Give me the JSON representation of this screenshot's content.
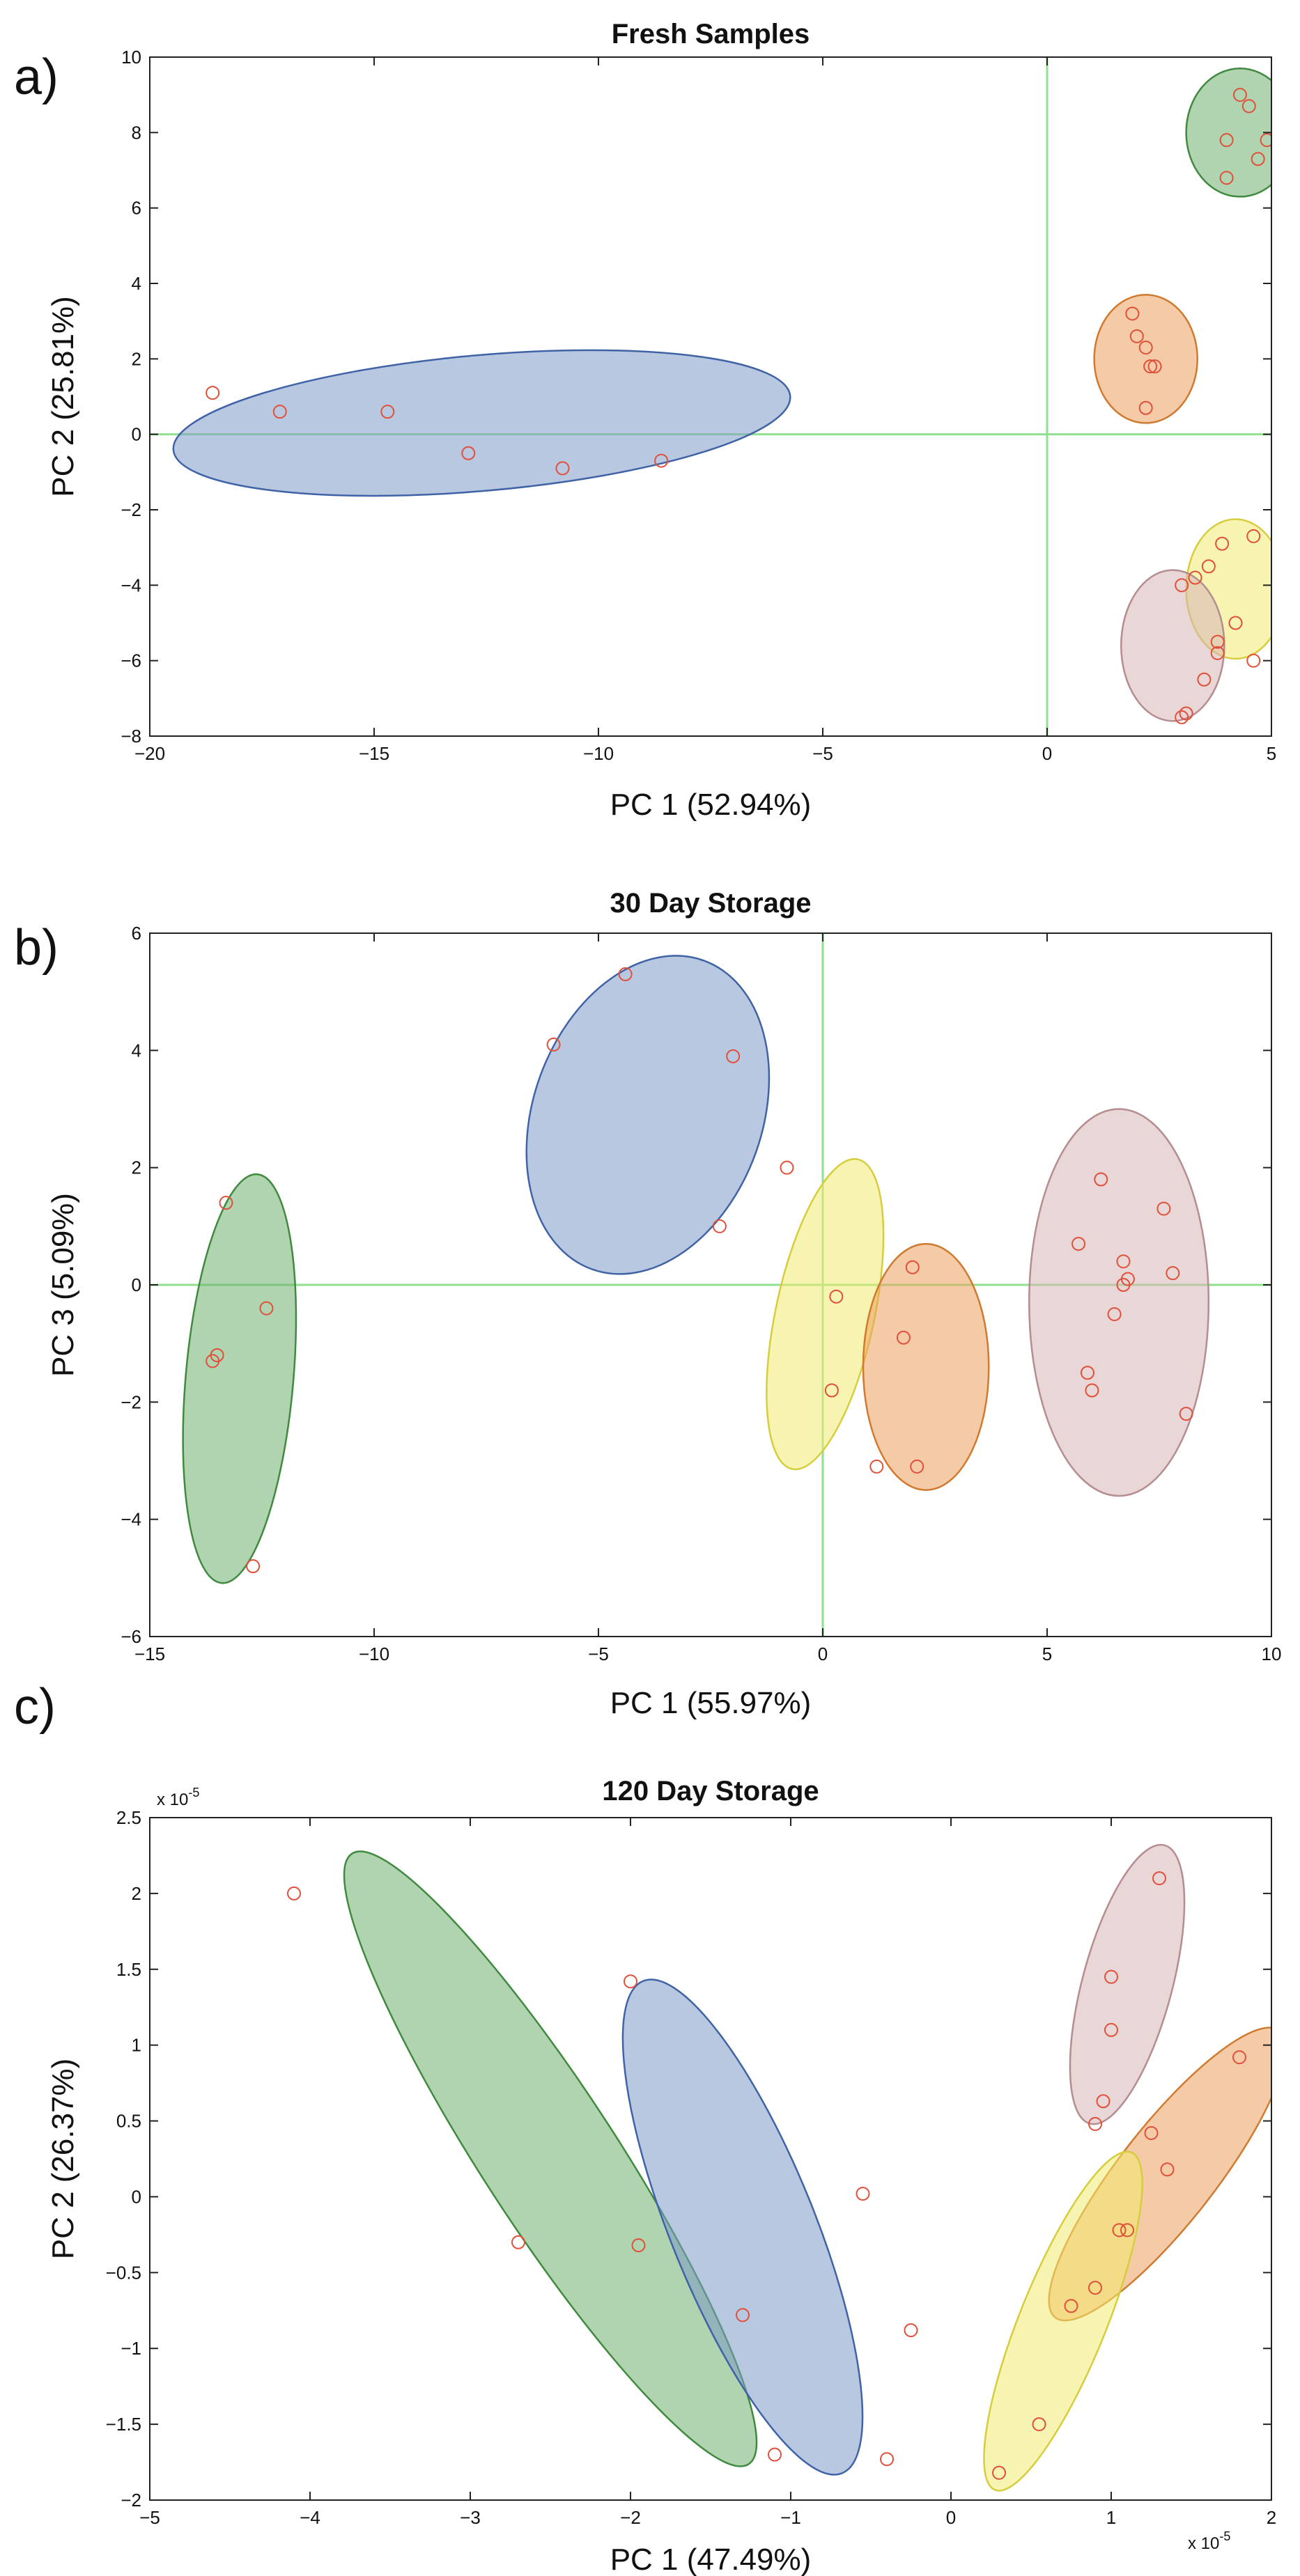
{
  "chart_data": [
    {
      "type": "scatter",
      "panel_label": "a)",
      "title": "Fresh Samples",
      "xlabel": "PC 1 (52.94%)",
      "ylabel": "PC 2 (25.81%)",
      "xlim": [
        -20,
        5
      ],
      "ylim": [
        -8,
        10
      ],
      "xticks": [
        -20,
        -15,
        -10,
        -5,
        0,
        5
      ],
      "yticks": [
        -8,
        -6,
        -4,
        -2,
        0,
        2,
        4,
        6,
        8,
        10
      ],
      "tick_multiplier": "",
      "origin_lines": true,
      "marker_color": "#e0503a",
      "groups": [
        {
          "color": "#7d9bc6",
          "stroke": "#3f63a6",
          "ellipse": {
            "cx": -12.6,
            "cy": 0.3,
            "rx": 6.9,
            "ry": 1.8,
            "angle_deg": -5
          },
          "points": [
            [
              -18.6,
              1.1
            ],
            [
              -17.1,
              0.6
            ],
            [
              -14.7,
              0.6
            ],
            [
              -12.9,
              -0.5
            ],
            [
              -10.8,
              -0.9
            ],
            [
              -8.6,
              -0.7
            ]
          ]
        },
        {
          "color": "#6fae6f",
          "stroke": "#3f8a3f",
          "ellipse": {
            "cx": 4.3,
            "cy": 8.0,
            "rx": 1.2,
            "ry": 1.7,
            "angle_deg": 0
          },
          "points": [
            [
              4.3,
              9.0
            ],
            [
              4.5,
              8.7
            ],
            [
              4.0,
              7.8
            ],
            [
              4.9,
              7.8
            ],
            [
              4.7,
              7.3
            ],
            [
              4.0,
              6.8
            ]
          ]
        },
        {
          "color": "#eca15e",
          "stroke": "#d07a30",
          "ellipse": {
            "cx": 2.2,
            "cy": 2.0,
            "rx": 1.15,
            "ry": 1.7,
            "angle_deg": 0
          },
          "points": [
            [
              1.9,
              3.2
            ],
            [
              2.0,
              2.6
            ],
            [
              2.2,
              2.3
            ],
            [
              2.3,
              1.8
            ],
            [
              2.4,
              1.8
            ],
            [
              2.2,
              0.7
            ]
          ]
        },
        {
          "color": "#f0ea70",
          "stroke": "#d6cd3e",
          "ellipse": {
            "cx": 4.2,
            "cy": -4.1,
            "rx": 1.1,
            "ry": 1.85,
            "angle_deg": 0
          },
          "points": [
            [
              3.9,
              -2.9
            ],
            [
              4.6,
              -2.7
            ],
            [
              3.6,
              -3.5
            ],
            [
              3.3,
              -3.8
            ],
            [
              3.0,
              -4.0
            ],
            [
              4.2,
              -5.0
            ]
          ]
        },
        {
          "color": "#d7b4b6",
          "stroke": "#b58c8f",
          "ellipse": {
            "cx": 2.8,
            "cy": -5.6,
            "rx": 1.15,
            "ry": 2.0,
            "angle_deg": 0
          },
          "points": [
            [
              3.8,
              -5.5
            ],
            [
              3.8,
              -5.8
            ],
            [
              3.5,
              -6.5
            ],
            [
              4.6,
              -6.0
            ],
            [
              3.1,
              -7.4
            ],
            [
              3.0,
              -7.5
            ]
          ]
        }
      ]
    },
    {
      "type": "scatter",
      "panel_label": "b)",
      "title": "30 Day Storage",
      "xlabel": "PC 1 (55.97%)",
      "ylabel": "PC 3 (5.09%)",
      "xlim": [
        -15,
        10
      ],
      "ylim": [
        -6,
        6
      ],
      "xticks": [
        -15,
        -10,
        -5,
        0,
        5,
        10
      ],
      "yticks": [
        -6,
        -4,
        -2,
        0,
        2,
        4,
        6
      ],
      "tick_multiplier": "",
      "origin_lines": true,
      "marker_color": "#e0503a",
      "groups": [
        {
          "color": "#6fae6f",
          "stroke": "#3f8a3f",
          "ellipse": {
            "cx": -13.0,
            "cy": -1.6,
            "rx": 1.2,
            "ry": 3.5,
            "angle_deg": 5
          },
          "points": [
            [
              -13.3,
              1.4
            ],
            [
              -12.4,
              -0.4
            ],
            [
              -13.5,
              -1.2
            ],
            [
              -13.6,
              -1.3
            ],
            [
              -12.7,
              -4.8
            ]
          ]
        },
        {
          "color": "#7d9bc6",
          "stroke": "#3f63a6",
          "ellipse": {
            "cx": -3.9,
            "cy": 2.9,
            "rx": 2.55,
            "ry": 2.8,
            "angle_deg": 20
          },
          "points": [
            [
              -4.4,
              5.3
            ],
            [
              -6.0,
              4.1
            ],
            [
              -2.0,
              3.9
            ],
            [
              -2.3,
              1.0
            ]
          ]
        },
        {
          "color": "#f0ea70",
          "stroke": "#d6cd3e",
          "ellipse": {
            "cx": 0.05,
            "cy": -0.5,
            "rx": 1.1,
            "ry": 2.7,
            "angle_deg": 12
          },
          "points": [
            [
              -0.8,
              2.0
            ],
            [
              0.3,
              -0.2
            ],
            [
              0.2,
              -1.8
            ],
            [
              1.2,
              -3.1
            ]
          ]
        },
        {
          "color": "#eca15e",
          "stroke": "#d07a30",
          "ellipse": {
            "cx": 2.3,
            "cy": -1.4,
            "rx": 1.4,
            "ry": 2.1,
            "angle_deg": 0
          },
          "points": [
            [
              2.0,
              0.3
            ],
            [
              1.8,
              -0.9
            ],
            [
              2.1,
              -3.1
            ]
          ]
        },
        {
          "color": "#d7b4b6",
          "stroke": "#b58c8f",
          "ellipse": {
            "cx": 6.6,
            "cy": -0.3,
            "rx": 2.0,
            "ry": 3.3,
            "angle_deg": 0
          },
          "points": [
            [
              6.2,
              1.8
            ],
            [
              7.6,
              1.3
            ],
            [
              5.7,
              0.7
            ],
            [
              6.7,
              0.4
            ],
            [
              6.8,
              0.1
            ],
            [
              6.7,
              0.0
            ],
            [
              7.8,
              0.2
            ],
            [
              6.5,
              -0.5
            ],
            [
              5.9,
              -1.5
            ],
            [
              6.0,
              -1.8
            ],
            [
              8.1,
              -2.2
            ]
          ]
        }
      ]
    },
    {
      "type": "scatter",
      "panel_label": "c)",
      "title": "120 Day Storage",
      "xlabel": "PC 1 (47.49%)",
      "ylabel": "PC 2 (26.37%)",
      "xlim": [
        -5,
        2
      ],
      "ylim": [
        -2,
        2.5
      ],
      "xticks": [
        -5,
        -4,
        -3,
        -2,
        -1,
        0,
        1,
        2
      ],
      "yticks": [
        -2,
        -1.5,
        -1,
        -0.5,
        0,
        0.5,
        1,
        1.5,
        2,
        2.5
      ],
      "tick_multiplier": "x 10",
      "tick_multiplier_exponent": "-5",
      "origin_lines": false,
      "marker_color": "#e0503a",
      "groups": [
        {
          "color": "#6fae6f",
          "stroke": "#3f8a3f",
          "ellipse": {
            "cx": -2.5,
            "cy": 0.25,
            "rx": 0.42,
            "ry": 2.4,
            "angle_deg": -33
          },
          "points": [
            [
              -4.1,
              2.0
            ],
            [
              -2.7,
              -0.3
            ],
            [
              -1.1,
              -1.7
            ]
          ]
        },
        {
          "color": "#7d9bc6",
          "stroke": "#3f63a6",
          "ellipse": {
            "cx": -1.3,
            "cy": -0.2,
            "rx": 0.45,
            "ry": 1.75,
            "angle_deg": -22
          },
          "points": [
            [
              -2.0,
              1.42
            ],
            [
              -1.95,
              -0.32
            ],
            [
              -1.3,
              -0.78
            ],
            [
              -0.55,
              0.02
            ],
            [
              -0.25,
              -0.88
            ],
            [
              -0.4,
              -1.73
            ]
          ]
        },
        {
          "color": "#d7b4b6",
          "stroke": "#b58c8f",
          "ellipse": {
            "cx": 1.1,
            "cy": 1.4,
            "rx": 0.28,
            "ry": 0.95,
            "angle_deg": 15
          },
          "points": [
            [
              1.3,
              2.1
            ],
            [
              1.0,
              1.45
            ],
            [
              1.0,
              1.1
            ],
            [
              0.95,
              0.63
            ],
            [
              0.9,
              0.48
            ]
          ]
        },
        {
          "color": "#eca15e",
          "stroke": "#d07a30",
          "ellipse": {
            "cx": 1.35,
            "cy": 0.15,
            "rx": 0.3,
            "ry": 1.2,
            "angle_deg": 38
          },
          "points": [
            [
              1.8,
              0.92
            ],
            [
              1.25,
              0.42
            ],
            [
              1.35,
              0.18
            ],
            [
              1.1,
              -0.22
            ],
            [
              1.05,
              -0.22
            ],
            [
              0.9,
              -0.6
            ],
            [
              0.75,
              -0.72
            ]
          ]
        },
        {
          "color": "#f0ea70",
          "stroke": "#d6cd3e",
          "ellipse": {
            "cx": 0.7,
            "cy": -0.82,
            "rx": 0.27,
            "ry": 1.2,
            "angle_deg": 22
          },
          "points": [
            [
              0.55,
              -1.5
            ],
            [
              0.3,
              -1.82
            ]
          ]
        }
      ]
    }
  ]
}
